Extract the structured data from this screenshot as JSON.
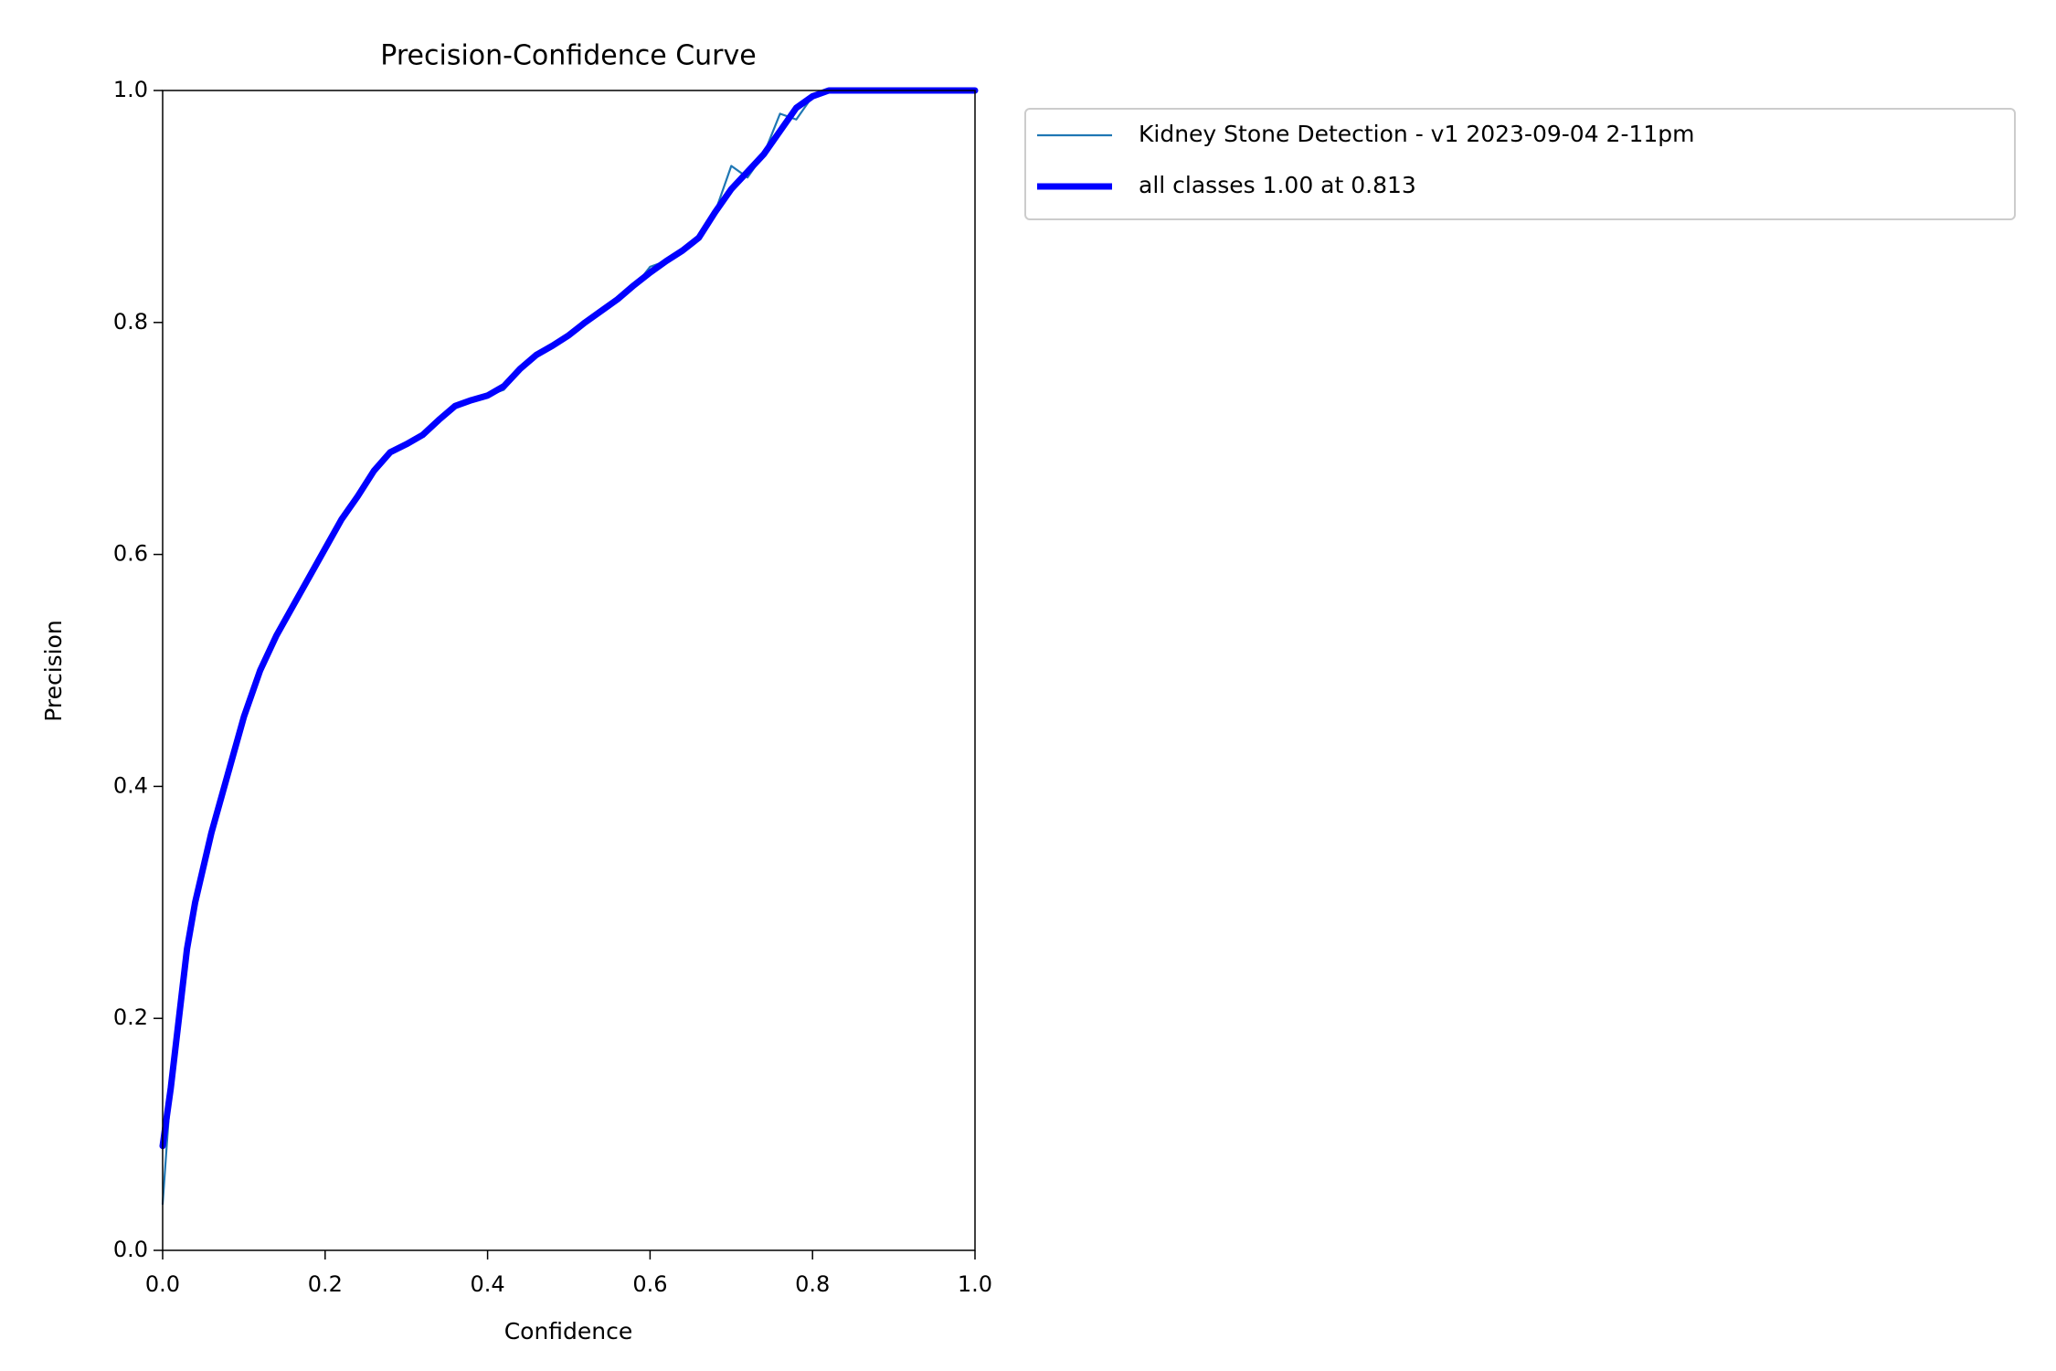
{
  "chart_data": {
    "type": "line",
    "title": "Precision-Confidence Curve",
    "x_label": "Confidence",
    "y_label": "Precision",
    "x": [
      0.0,
      0.01,
      0.02,
      0.03,
      0.04,
      0.05,
      0.06,
      0.08,
      0.1,
      0.12,
      0.14,
      0.16,
      0.18,
      0.2,
      0.22,
      0.24,
      0.26,
      0.28,
      0.3,
      0.32,
      0.34,
      0.36,
      0.38,
      0.4,
      0.42,
      0.44,
      0.46,
      0.48,
      0.5,
      0.52,
      0.54,
      0.56,
      0.58,
      0.6,
      0.62,
      0.64,
      0.66,
      0.68,
      0.7,
      0.72,
      0.74,
      0.76,
      0.78,
      0.8,
      0.82,
      0.9,
      1.0
    ],
    "series": [
      {
        "name": "Kidney Stone Detection - v1 2023-09-04 2-11pm",
        "color": "#1f77b4",
        "width": "thin",
        "values": [
          0.04,
          0.14,
          0.2,
          0.26,
          0.3,
          0.33,
          0.36,
          0.41,
          0.46,
          0.5,
          0.53,
          0.555,
          0.58,
          0.605,
          0.63,
          0.65,
          0.672,
          0.688,
          0.695,
          0.703,
          0.716,
          0.728,
          0.733,
          0.737,
          0.742,
          0.76,
          0.772,
          0.78,
          0.789,
          0.8,
          0.81,
          0.82,
          0.83,
          0.848,
          0.853,
          0.862,
          0.873,
          0.895,
          0.935,
          0.925,
          0.945,
          0.98,
          0.975,
          0.995,
          1.0,
          1.0,
          1.0
        ]
      },
      {
        "name": "all classes 1.00 at 0.813",
        "color": "#0000ff",
        "width": "thick",
        "values": [
          0.09,
          0.14,
          0.2,
          0.26,
          0.3,
          0.33,
          0.36,
          0.41,
          0.46,
          0.5,
          0.53,
          0.555,
          0.58,
          0.605,
          0.63,
          0.65,
          0.672,
          0.688,
          0.695,
          0.703,
          0.716,
          0.728,
          0.733,
          0.737,
          0.745,
          0.76,
          0.772,
          0.78,
          0.789,
          0.8,
          0.81,
          0.82,
          0.832,
          0.843,
          0.853,
          0.862,
          0.873,
          0.895,
          0.915,
          0.93,
          0.945,
          0.965,
          0.985,
          0.995,
          1.0,
          1.0,
          1.0
        ]
      }
    ],
    "xlim": [
      0,
      1
    ],
    "ylim": [
      0,
      1
    ],
    "xticks": [
      {
        "value": 0,
        "label": "0.0"
      },
      0.2,
      0.4,
      0.6,
      0.8,
      {
        "value": 1,
        "label": "1.0"
      }
    ],
    "yticks": [
      {
        "value": 0,
        "label": "0.0"
      },
      0.2,
      0.4,
      0.6,
      0.8,
      {
        "value": 1,
        "label": "1.0"
      }
    ],
    "legend": "outside-upper-left",
    "grid": false
  }
}
